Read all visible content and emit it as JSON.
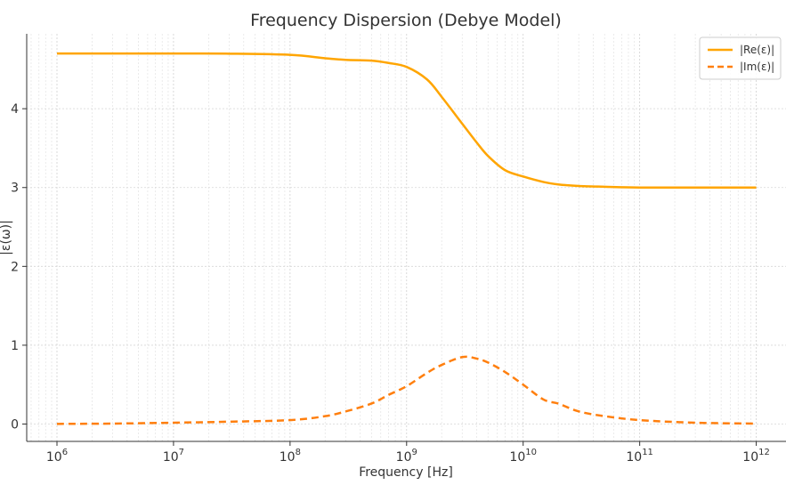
{
  "chart_data": {
    "type": "line",
    "title": "Frequency Dispersion (Debye Model)",
    "xlabel": "Frequency [Hz]",
    "ylabel": "|ε(ω)|",
    "xscale": "log",
    "xlim": [
      550000.0,
      1800000000000.0
    ],
    "ylim": [
      -0.22,
      4.95
    ],
    "x_tick_labels": [
      {
        "base": "10",
        "exp": "6"
      },
      {
        "base": "10",
        "exp": "7"
      },
      {
        "base": "10",
        "exp": "8"
      },
      {
        "base": "10",
        "exp": "9"
      },
      {
        "base": "10",
        "exp": "10"
      },
      {
        "base": "10",
        "exp": "11"
      },
      {
        "base": "10",
        "exp": "12"
      }
    ],
    "y_tick_labels": [
      "0",
      "1",
      "2",
      "3",
      "4"
    ],
    "grid": true,
    "legend_position": "top-right",
    "x": [
      1000000.0,
      3000000.0,
      10000000.0,
      30000000.0,
      100000000.0,
      200000000.0,
      300000000.0,
      500000000.0,
      700000000.0,
      1000000000.0,
      1500000000.0,
      2000000000.0,
      3000000000.0,
      4000000000.0,
      5000000000.0,
      7000000000.0,
      10000000000.0,
      15000000000.0,
      20000000000.0,
      30000000000.0,
      50000000000.0,
      100000000000.0,
      300000000000.0,
      1000000000000.0
    ],
    "series": [
      {
        "name": "|Re(ε)|",
        "color": "#ffa500",
        "style": "solid",
        "values": [
          4.7,
          4.7,
          4.7,
          4.698,
          4.683,
          4.64,
          4.62,
          4.61,
          4.58,
          4.53,
          4.37,
          4.15,
          3.81,
          3.57,
          3.4,
          3.22,
          3.14,
          3.07,
          3.04,
          3.02,
          3.01,
          3.0,
          3.0,
          3.0
        ]
      },
      {
        "name": "|Im(ε)|",
        "color": "#ff7f0e",
        "style": "dashed",
        "values": [
          0.002,
          0.006,
          0.017,
          0.03,
          0.05,
          0.1,
          0.16,
          0.26,
          0.37,
          0.48,
          0.65,
          0.75,
          0.85,
          0.83,
          0.78,
          0.66,
          0.5,
          0.31,
          0.26,
          0.16,
          0.1,
          0.05,
          0.017,
          0.005
        ]
      }
    ]
  }
}
